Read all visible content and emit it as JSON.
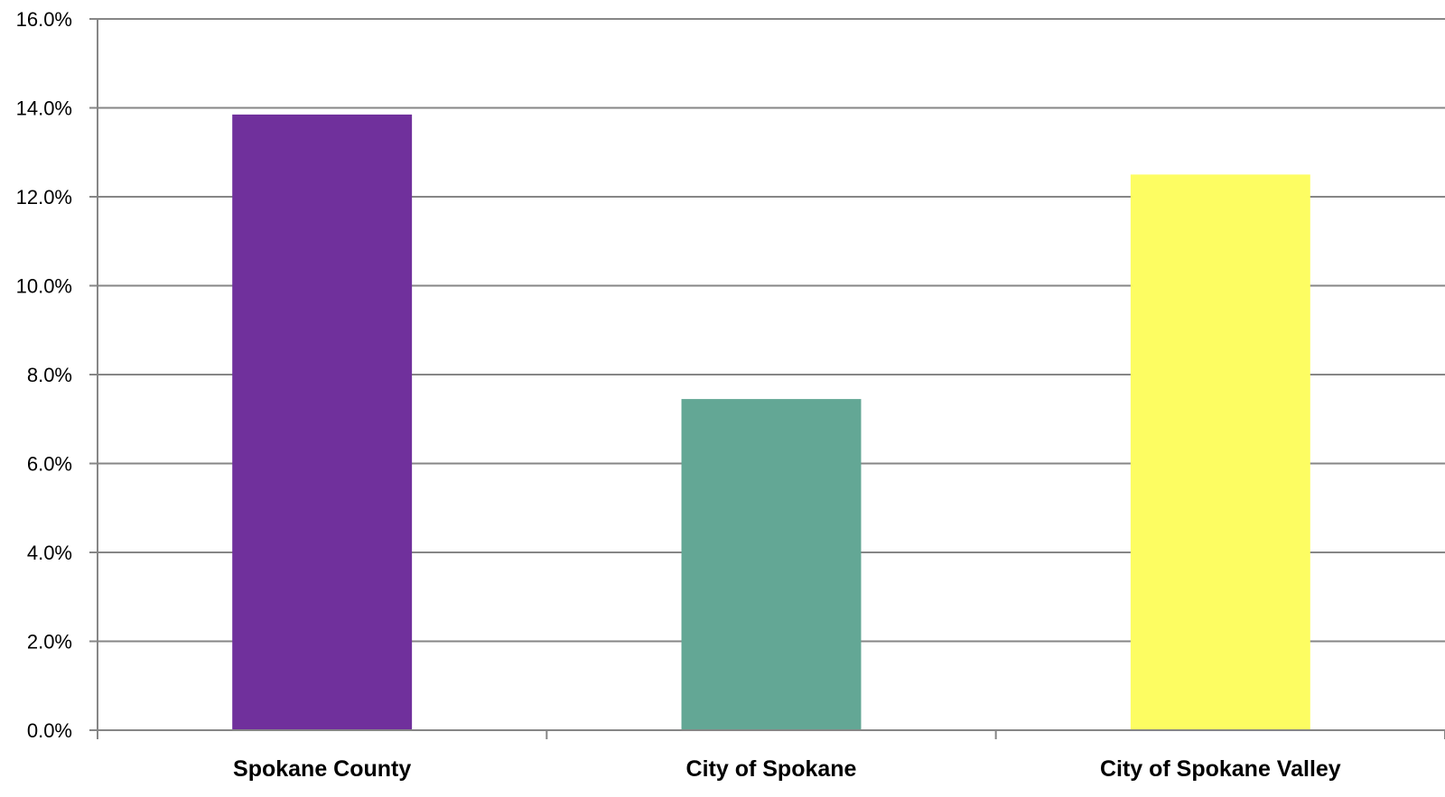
{
  "chart_data": {
    "type": "bar",
    "categories": [
      "Spokane County",
      "City of Spokane",
      "City of Spokane Valley"
    ],
    "values": [
      13.85,
      7.45,
      12.5
    ],
    "colors": [
      "#70309C",
      "#63A795",
      "#FDFD62"
    ],
    "ylim": [
      0,
      16
    ],
    "yticks": [
      "0.0%",
      "2.0%",
      "4.0%",
      "6.0%",
      "8.0%",
      "10.0%",
      "12.0%",
      "14.0%",
      "16.0%"
    ],
    "grid": true,
    "legend": "none",
    "title": "",
    "xlabel": "",
    "ylabel": ""
  }
}
